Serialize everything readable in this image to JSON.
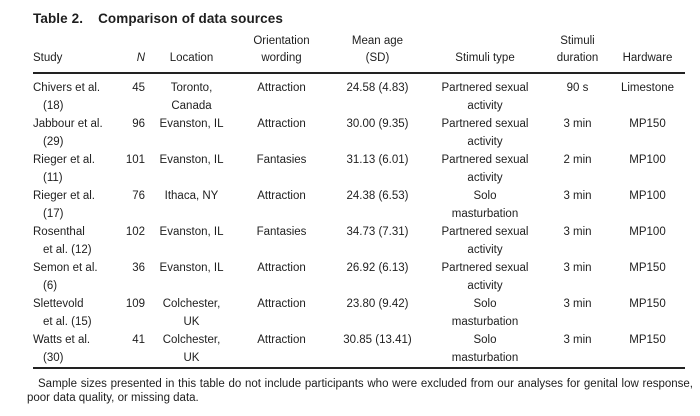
{
  "title": {
    "label": "Table 2.",
    "text": "Comparison of data sources"
  },
  "table": {
    "columns": [
      {
        "key": "study",
        "label": "Study"
      },
      {
        "key": "n",
        "label": "N",
        "italic": true
      },
      {
        "key": "location",
        "label": "Location"
      },
      {
        "key": "orientation",
        "label": "Orientation\nwording"
      },
      {
        "key": "mean_age",
        "label": "Mean age\n(SD)"
      },
      {
        "key": "stimuli_type",
        "label": "Stimuli type"
      },
      {
        "key": "stimuli_duration",
        "label": "Stimuli\nduration"
      },
      {
        "key": "hardware",
        "label": "Hardware"
      }
    ],
    "rows": [
      {
        "study": "Chivers et al.\n(18)",
        "n": "45",
        "location": "Toronto,\nCanada",
        "orientation": "Attraction",
        "mean_age": "24.58 (4.83)",
        "stimuli_type": "Partnered sexual\nactivity",
        "stimuli_duration": "90 s",
        "hardware": "Limestone"
      },
      {
        "study": "Jabbour et al.\n(29)",
        "n": "96",
        "location": "Evanston, IL",
        "orientation": "Attraction",
        "mean_age": "30.00 (9.35)",
        "stimuli_type": "Partnered sexual\nactivity",
        "stimuli_duration": "3 min",
        "hardware": "MP150"
      },
      {
        "study": "Rieger et al.\n(11)",
        "n": "101",
        "location": "Evanston, IL",
        "orientation": "Fantasies",
        "mean_age": "31.13 (6.01)",
        "stimuli_type": "Partnered sexual\nactivity",
        "stimuli_duration": "2 min",
        "hardware": "MP100"
      },
      {
        "study": "Rieger et al.\n(17)",
        "n": "76",
        "location": "Ithaca, NY",
        "orientation": "Attraction",
        "mean_age": "24.38 (6.53)",
        "stimuli_type": "Solo\nmasturbation",
        "stimuli_duration": "3 min",
        "hardware": "MP100"
      },
      {
        "study": "Rosenthal\net al. (12)",
        "n": "102",
        "location": "Evanston, IL",
        "orientation": "Fantasies",
        "mean_age": "34.73 (7.31)",
        "stimuli_type": "Partnered sexual\nactivity",
        "stimuli_duration": "3 min",
        "hardware": "MP100"
      },
      {
        "study": "Semon et al.\n(6)",
        "n": "36",
        "location": "Evanston, IL",
        "orientation": "Attraction",
        "mean_age": "26.92 (6.13)",
        "stimuli_type": "Partnered sexual\nactivity",
        "stimuli_duration": "3 min",
        "hardware": "MP150"
      },
      {
        "study": "Slettevold\net al. (15)",
        "n": "109",
        "location": "Colchester,\nUK",
        "orientation": "Attraction",
        "mean_age": "23.80 (9.42)",
        "stimuli_type": "Solo\nmasturbation",
        "stimuli_duration": "3 min",
        "hardware": "MP150"
      },
      {
        "study": "Watts et al.\n(30)",
        "n": "41",
        "location": "Colchester,\nUK",
        "orientation": "Attraction",
        "mean_age": "30.85 (13.41)",
        "stimuli_type": "Solo\nmasturbation",
        "stimuli_duration": "3 min",
        "hardware": "MP150"
      }
    ]
  },
  "footnote": "Sample sizes presented in this table do not include participants who were excluded from our analyses for genital low response, poor data quality, or missing data."
}
